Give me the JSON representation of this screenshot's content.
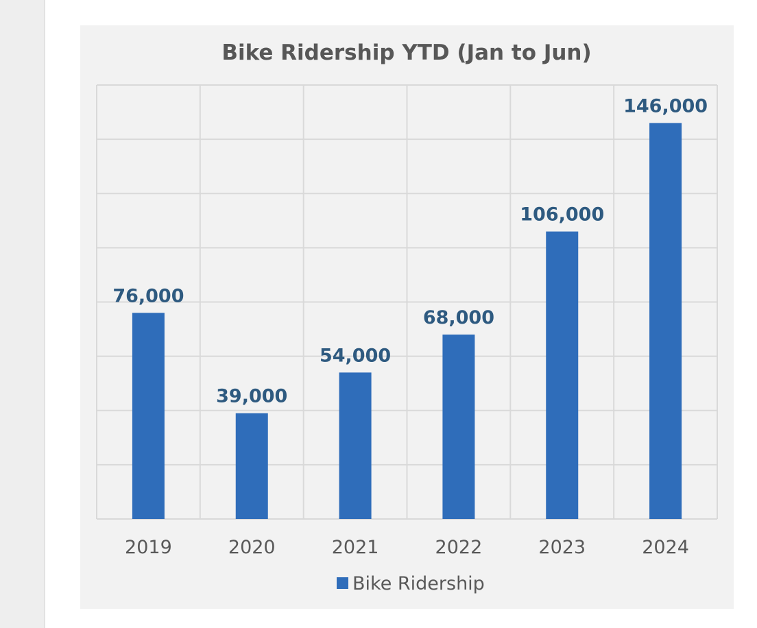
{
  "chart_data": {
    "type": "bar",
    "title": "Bike Ridership YTD (Jan to Jun)",
    "categories": [
      "2019",
      "2020",
      "2021",
      "2022",
      "2023",
      "2024"
    ],
    "series": [
      {
        "name": "Bike Ridership",
        "values": [
          76000,
          39000,
          54000,
          68000,
          106000,
          146000
        ],
        "labels": [
          "76,000",
          "39,000",
          "54,000",
          "68,000",
          "106,000",
          "146,000"
        ]
      }
    ],
    "ylim": [
      0,
      160000
    ],
    "y_major_step": 20000,
    "y_axis_labels_shown": false,
    "grid": true,
    "legend_position": "bottom",
    "colors": {
      "bar": "#2f6dba",
      "grid": "#d9d9d9",
      "panel_background": "#f2f2f2",
      "data_label": "#2e5a80",
      "title": "#575757",
      "axis_text": "#595959"
    }
  }
}
